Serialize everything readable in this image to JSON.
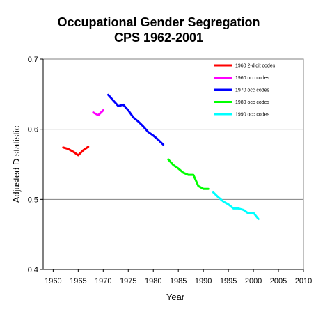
{
  "chart_data": {
    "type": "line",
    "title": "Occupational Gender Segregation",
    "subtitle": "CPS 1962-2001",
    "xlabel": "Year",
    "ylabel": "Adjusted D statistic",
    "xlim": [
      1958,
      2010
    ],
    "ylim": [
      0.4,
      0.7
    ],
    "x_ticks": [
      1960,
      1965,
      1970,
      1975,
      1980,
      1985,
      1990,
      1995,
      2000,
      2005,
      2010
    ],
    "y_ticks": [
      0.4,
      0.5,
      0.6,
      0.7
    ],
    "y_tick_labels": [
      "0.4",
      "0.5",
      "0.6",
      "0.7"
    ],
    "grid": "horizontal",
    "legend_position": "top-right",
    "series": [
      {
        "name": "1960 2-digit codes",
        "color": "#ff0000",
        "x": [
          1962,
          1963,
          1964,
          1965,
          1966,
          1967
        ],
        "y": [
          0.574,
          0.572,
          0.568,
          0.563,
          0.57,
          0.575
        ]
      },
      {
        "name": "1960 occ codes",
        "color": "#ff00ff",
        "x": [
          1968,
          1969,
          1970
        ],
        "y": [
          0.624,
          0.62,
          0.627
        ]
      },
      {
        "name": "1970 occ codes",
        "color": "#0000ff",
        "x": [
          1971,
          1972,
          1973,
          1974,
          1975,
          1976,
          1977,
          1978,
          1979,
          1980,
          1981,
          1982
        ],
        "y": [
          0.649,
          0.641,
          0.633,
          0.635,
          0.627,
          0.617,
          0.611,
          0.604,
          0.596,
          0.591,
          0.585,
          0.578
        ]
      },
      {
        "name": "1980 occ codes",
        "color": "#00ff00",
        "x": [
          1983,
          1984,
          1985,
          1986,
          1987,
          1988,
          1989,
          1990,
          1991
        ],
        "y": [
          0.557,
          0.549,
          0.544,
          0.538,
          0.535,
          0.535,
          0.519,
          0.515,
          0.515
        ]
      },
      {
        "name": "1990 occ codes",
        "color": "#00ffff",
        "x": [
          1992,
          1993,
          1994,
          1995,
          1996,
          1997,
          1998,
          1999,
          2000,
          2001
        ],
        "y": [
          0.51,
          0.503,
          0.497,
          0.493,
          0.487,
          0.487,
          0.485,
          0.48,
          0.481,
          0.472
        ]
      }
    ]
  }
}
